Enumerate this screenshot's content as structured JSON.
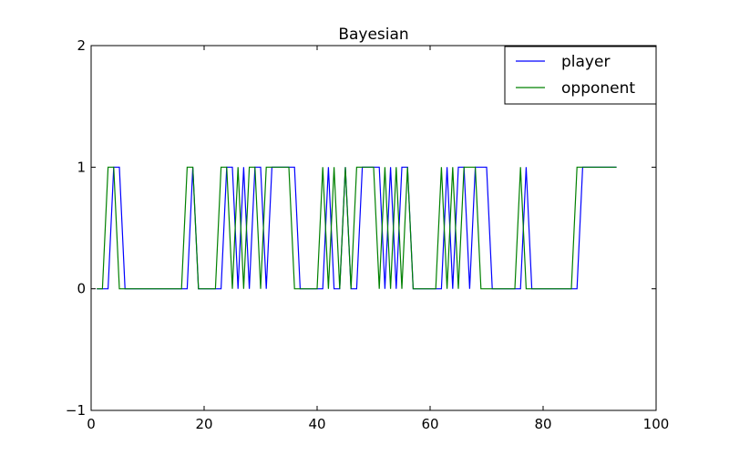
{
  "chart_data": {
    "type": "line",
    "title": "Bayesian",
    "xlabel": "",
    "ylabel": "",
    "xlim": [
      0,
      100
    ],
    "ylim": [
      -1,
      2
    ],
    "x_ticks": [
      0,
      20,
      40,
      60,
      80,
      100
    ],
    "y_ticks": [
      -1,
      0,
      1,
      2
    ],
    "x_tick_labels": [
      "0",
      "20",
      "40",
      "60",
      "80",
      "100"
    ],
    "y_tick_labels": [
      "−1",
      "0",
      "1",
      "2"
    ],
    "grid": false,
    "legend_position": "top-right",
    "x": [
      1,
      2,
      3,
      4,
      5,
      6,
      7,
      8,
      9,
      10,
      11,
      12,
      13,
      14,
      15,
      16,
      17,
      18,
      19,
      20,
      21,
      22,
      23,
      24,
      25,
      26,
      27,
      28,
      29,
      30,
      31,
      32,
      33,
      34,
      35,
      36,
      37,
      38,
      39,
      40,
      41,
      42,
      43,
      44,
      45,
      46,
      47,
      48,
      49,
      50,
      51,
      52,
      53,
      54,
      55,
      56,
      57,
      58,
      59,
      60,
      61,
      62,
      63,
      64,
      65,
      66,
      67,
      68,
      69,
      70,
      71,
      72,
      73,
      74,
      75,
      76,
      77,
      78,
      79,
      80,
      81,
      82,
      83,
      84,
      85,
      86,
      87,
      88,
      89,
      90,
      91,
      92,
      93
    ],
    "series": [
      {
        "name": "player",
        "color": "#0000ff",
        "values": [
          0,
          0,
          0,
          1,
          1,
          0,
          0,
          0,
          0,
          0,
          0,
          0,
          0,
          0,
          0,
          0,
          0,
          1,
          0,
          0,
          0,
          0,
          0,
          1,
          1,
          0,
          1,
          0,
          1,
          1,
          0,
          1,
          1,
          1,
          1,
          1,
          0,
          0,
          0,
          0,
          0,
          1,
          0,
          0,
          1,
          0,
          0,
          1,
          1,
          1,
          1,
          0,
          1,
          0,
          1,
          1,
          0,
          0,
          0,
          0,
          0,
          0,
          1,
          0,
          1,
          1,
          0,
          1,
          1,
          1,
          0,
          0,
          0,
          0,
          0,
          0,
          1,
          0,
          0,
          0,
          0,
          0,
          0,
          0,
          0,
          0,
          1,
          1,
          1,
          1,
          1,
          1,
          1
        ]
      },
      {
        "name": "opponent",
        "color": "#008000",
        "values": [
          0,
          0,
          1,
          1,
          0,
          0,
          0,
          0,
          0,
          0,
          0,
          0,
          0,
          0,
          0,
          0,
          1,
          1,
          0,
          0,
          0,
          0,
          1,
          1,
          0,
          1,
          0,
          1,
          1,
          0,
          1,
          1,
          1,
          1,
          1,
          0,
          0,
          0,
          0,
          0,
          1,
          0,
          1,
          0,
          1,
          0,
          1,
          1,
          1,
          1,
          0,
          1,
          0,
          1,
          0,
          1,
          0,
          0,
          0,
          0,
          0,
          1,
          0,
          1,
          0,
          1,
          1,
          1,
          0,
          0,
          0,
          0,
          0,
          0,
          0,
          1,
          0,
          0,
          0,
          0,
          0,
          0,
          0,
          0,
          0,
          1,
          1,
          1,
          1,
          1,
          1,
          1,
          1
        ]
      }
    ]
  }
}
